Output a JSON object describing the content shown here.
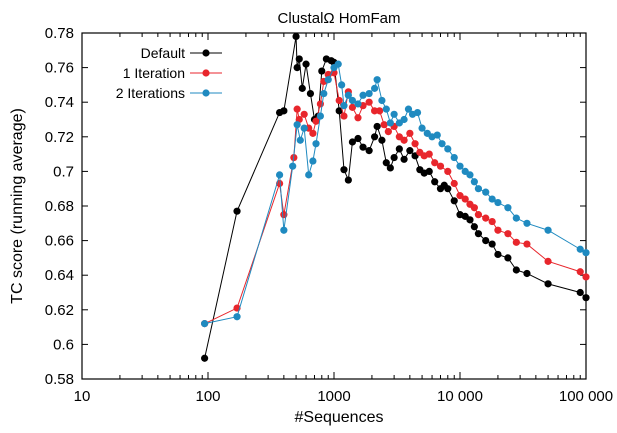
{
  "chart_data": {
    "type": "line",
    "title": "ClustalΩ HomFam",
    "xlabel": "#Sequences",
    "ylabel": "TC score (running average)",
    "x_scale": "log",
    "xlim": [
      10,
      100000
    ],
    "ylim": [
      0.58,
      0.78
    ],
    "x_ticks": [
      10,
      100,
      1000,
      10000,
      100000
    ],
    "x_tick_labels": [
      "10",
      "100",
      "1000",
      "10 000",
      "100 000"
    ],
    "y_ticks": [
      0.58,
      0.6,
      0.62,
      0.64,
      0.66,
      0.68,
      0.7,
      0.72,
      0.74,
      0.76,
      0.78
    ],
    "y_tick_labels": [
      "0.58",
      "0.6",
      "0.62",
      "0.64",
      "0.66",
      "0.68",
      "0.7",
      "0.72",
      "0.74",
      "0.76",
      "0.78"
    ],
    "grid": false,
    "legend_position": "top-left",
    "series": [
      {
        "name": "Default",
        "color": "#000000",
        "points": [
          [
            94,
            0.592
          ],
          [
            170,
            0.677
          ],
          [
            370,
            0.734
          ],
          [
            400,
            0.735
          ],
          [
            500,
            0.778
          ],
          [
            510,
            0.76
          ],
          [
            530,
            0.765
          ],
          [
            560,
            0.748
          ],
          [
            600,
            0.762
          ],
          [
            650,
            0.745
          ],
          [
            700,
            0.73
          ],
          [
            750,
            0.732
          ],
          [
            800,
            0.758
          ],
          [
            870,
            0.765
          ],
          [
            950,
            0.764
          ],
          [
            1000,
            0.763
          ],
          [
            1100,
            0.735
          ],
          [
            1200,
            0.701
          ],
          [
            1300,
            0.695
          ],
          [
            1400,
            0.717
          ],
          [
            1550,
            0.719
          ],
          [
            1700,
            0.714
          ],
          [
            1900,
            0.712
          ],
          [
            2100,
            0.72
          ],
          [
            2200,
            0.726
          ],
          [
            2400,
            0.718
          ],
          [
            2600,
            0.705
          ],
          [
            2800,
            0.702
          ],
          [
            3000,
            0.708
          ],
          [
            3300,
            0.713
          ],
          [
            3600,
            0.707
          ],
          [
            4000,
            0.712
          ],
          [
            4400,
            0.709
          ],
          [
            4800,
            0.701
          ],
          [
            5200,
            0.699
          ],
          [
            5700,
            0.7
          ],
          [
            6300,
            0.694
          ],
          [
            7000,
            0.69
          ],
          [
            7500,
            0.692
          ],
          [
            8000,
            0.69
          ],
          [
            9000,
            0.683
          ],
          [
            10000,
            0.675
          ],
          [
            11000,
            0.674
          ],
          [
            12000,
            0.672
          ],
          [
            13000,
            0.668
          ],
          [
            14000,
            0.664
          ],
          [
            16000,
            0.66
          ],
          [
            18000,
            0.658
          ],
          [
            20000,
            0.652
          ],
          [
            24000,
            0.65
          ],
          [
            28000,
            0.643
          ],
          [
            34000,
            0.641
          ],
          [
            50000,
            0.635
          ],
          [
            90000,
            0.63
          ],
          [
            100000,
            0.627
          ]
        ]
      },
      {
        "name": "1 Iteration",
        "color": "#e8262c",
        "points": [
          [
            94,
            0.612
          ],
          [
            170,
            0.621
          ],
          [
            370,
            0.693
          ],
          [
            400,
            0.675
          ],
          [
            480,
            0.708
          ],
          [
            510,
            0.736
          ],
          [
            530,
            0.73
          ],
          [
            580,
            0.733
          ],
          [
            630,
            0.725
          ],
          [
            680,
            0.722
          ],
          [
            720,
            0.729
          ],
          [
            780,
            0.739
          ],
          [
            830,
            0.752
          ],
          [
            900,
            0.756
          ],
          [
            1000,
            0.757
          ],
          [
            1100,
            0.741
          ],
          [
            1200,
            0.732
          ],
          [
            1300,
            0.746
          ],
          [
            1400,
            0.737
          ],
          [
            1550,
            0.731
          ],
          [
            1700,
            0.738
          ],
          [
            1900,
            0.74
          ],
          [
            2100,
            0.735
          ],
          [
            2300,
            0.735
          ],
          [
            2500,
            0.727
          ],
          [
            2700,
            0.723
          ],
          [
            3000,
            0.726
          ],
          [
            3300,
            0.72
          ],
          [
            3600,
            0.718
          ],
          [
            4000,
            0.722
          ],
          [
            4400,
            0.716
          ],
          [
            4800,
            0.711
          ],
          [
            5200,
            0.709
          ],
          [
            5700,
            0.71
          ],
          [
            6300,
            0.705
          ],
          [
            7000,
            0.703
          ],
          [
            8000,
            0.7
          ],
          [
            9000,
            0.693
          ],
          [
            10000,
            0.686
          ],
          [
            11000,
            0.684
          ],
          [
            12000,
            0.681
          ],
          [
            13000,
            0.679
          ],
          [
            14000,
            0.675
          ],
          [
            16000,
            0.673
          ],
          [
            18000,
            0.671
          ],
          [
            20000,
            0.666
          ],
          [
            24000,
            0.664
          ],
          [
            28000,
            0.659
          ],
          [
            34000,
            0.658
          ],
          [
            50000,
            0.648
          ],
          [
            90000,
            0.642
          ],
          [
            100000,
            0.639
          ]
        ]
      },
      {
        "name": "2 Iterations",
        "color": "#1f8ac0",
        "points": [
          [
            94,
            0.612
          ],
          [
            170,
            0.616
          ],
          [
            370,
            0.698
          ],
          [
            400,
            0.666
          ],
          [
            470,
            0.703
          ],
          [
            510,
            0.727
          ],
          [
            540,
            0.718
          ],
          [
            580,
            0.725
          ],
          [
            630,
            0.698
          ],
          [
            680,
            0.706
          ],
          [
            720,
            0.716
          ],
          [
            780,
            0.732
          ],
          [
            830,
            0.745
          ],
          [
            900,
            0.753
          ],
          [
            1000,
            0.76
          ],
          [
            1080,
            0.762
          ],
          [
            1150,
            0.75
          ],
          [
            1200,
            0.738
          ],
          [
            1300,
            0.744
          ],
          [
            1400,
            0.741
          ],
          [
            1550,
            0.739
          ],
          [
            1700,
            0.744
          ],
          [
            1900,
            0.745
          ],
          [
            2100,
            0.748
          ],
          [
            2200,
            0.753
          ],
          [
            2400,
            0.741
          ],
          [
            2600,
            0.736
          ],
          [
            2800,
            0.728
          ],
          [
            3000,
            0.733
          ],
          [
            3300,
            0.728
          ],
          [
            3600,
            0.73
          ],
          [
            3900,
            0.736
          ],
          [
            4200,
            0.733
          ],
          [
            4600,
            0.734
          ],
          [
            5000,
            0.725
          ],
          [
            5500,
            0.722
          ],
          [
            6000,
            0.72
          ],
          [
            6600,
            0.721
          ],
          [
            7200,
            0.716
          ],
          [
            8000,
            0.713
          ],
          [
            9000,
            0.708
          ],
          [
            10000,
            0.703
          ],
          [
            11000,
            0.7
          ],
          [
            12000,
            0.698
          ],
          [
            13000,
            0.694
          ],
          [
            14000,
            0.69
          ],
          [
            16000,
            0.688
          ],
          [
            18000,
            0.684
          ],
          [
            20000,
            0.682
          ],
          [
            24000,
            0.679
          ],
          [
            28000,
            0.673
          ],
          [
            34000,
            0.67
          ],
          [
            50000,
            0.666
          ],
          [
            90000,
            0.655
          ],
          [
            100000,
            0.653
          ]
        ]
      }
    ]
  }
}
